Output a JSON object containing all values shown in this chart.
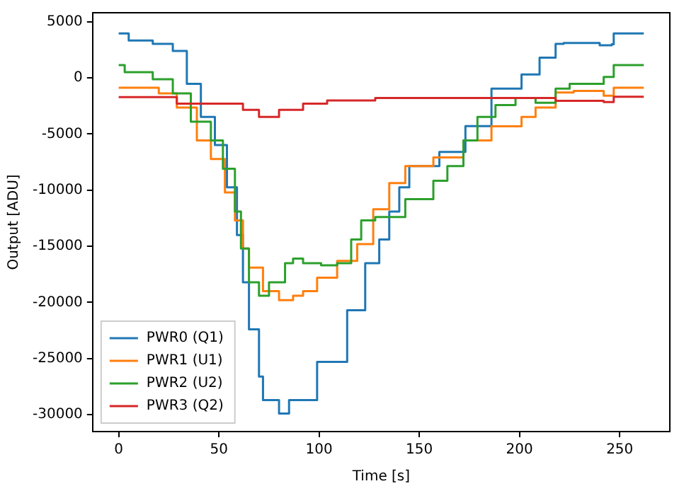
{
  "chart_data": {
    "type": "step",
    "xlabel": "Time [s]",
    "ylabel": "Output [ADU]",
    "xlim": [
      -13,
      275
    ],
    "xticks": [
      0,
      50,
      100,
      150,
      200,
      250
    ],
    "ylim": [
      -31500,
      5800
    ],
    "yticks": [
      -30000,
      -25000,
      -20000,
      -15000,
      -10000,
      -5000,
      0,
      5000
    ],
    "grid": false,
    "legend": "bottom left",
    "series": [
      {
        "name": "PWR0 (Q1)",
        "color": "#1f77b4",
        "x": [
          0,
          5,
          17,
          27,
          34,
          41,
          48,
          54,
          59,
          62,
          65,
          70,
          72,
          80,
          85,
          99,
          114,
          123,
          130,
          135,
          140,
          145,
          160,
          173,
          186,
          201,
          210,
          218,
          222,
          240,
          246,
          247,
          262
        ],
        "values": [
          3950,
          3320,
          3020,
          2400,
          -540,
          -3480,
          -5980,
          -9750,
          -14000,
          -18200,
          -22400,
          -26600,
          -28700,
          -29900,
          -28700,
          -25300,
          -20700,
          -16500,
          -14400,
          -11900,
          -9750,
          -7850,
          -6600,
          -4300,
          -960,
          300,
          1800,
          3020,
          3100,
          2900,
          3000,
          3950,
          3950
        ]
      },
      {
        "name": "PWR1 (U1)",
        "color": "#ff7f0e",
        "x": [
          0,
          20,
          29,
          39,
          46,
          53,
          58,
          62,
          65,
          72,
          80,
          87,
          92,
          99,
          109,
          119,
          127,
          135,
          143,
          157,
          172,
          186,
          201,
          208,
          218,
          227,
          242,
          246,
          247,
          262
        ],
        "values": [
          -880,
          -1380,
          -2640,
          -5580,
          -7230,
          -10200,
          -12700,
          -15200,
          -16900,
          -19000,
          -19800,
          -19400,
          -19000,
          -17800,
          -16300,
          -14800,
          -11700,
          -9370,
          -7850,
          -7080,
          -5580,
          -4320,
          -3480,
          -2640,
          -1300,
          -1170,
          -1590,
          -1590,
          -880,
          -880
        ]
      },
      {
        "name": "PWR2 (U2)",
        "color": "#2ca02c",
        "x": [
          0,
          3,
          17,
          27,
          36,
          46,
          52,
          58,
          61,
          65,
          70,
          75,
          83,
          87,
          92,
          101,
          109,
          116,
          121,
          128,
          143,
          157,
          164,
          172,
          179,
          188,
          198,
          208,
          218,
          225,
          242,
          246,
          247,
          262
        ],
        "values": [
          1130,
          500,
          -130,
          -1380,
          -3900,
          -5580,
          -8100,
          -11900,
          -15200,
          -18200,
          -19400,
          -18200,
          -16500,
          -16100,
          -16500,
          -16700,
          -16500,
          -14400,
          -12700,
          -12400,
          -10800,
          -9160,
          -7850,
          -5580,
          -3480,
          -2430,
          -1800,
          -2220,
          -960,
          -540,
          90,
          90,
          1130,
          1130
        ]
      },
      {
        "name": "PWR3 (Q2)",
        "color": "#d62728",
        "x": [
          0,
          29,
          48,
          62,
          70,
          80,
          92,
          104,
          128,
          157,
          201,
          218,
          242,
          246,
          247,
          262
        ],
        "values": [
          -1720,
          -2300,
          -2300,
          -2850,
          -3480,
          -2850,
          -2300,
          -2010,
          -1800,
          -1800,
          -1800,
          -2050,
          -2150,
          -2150,
          -1680,
          -1680
        ]
      }
    ]
  }
}
